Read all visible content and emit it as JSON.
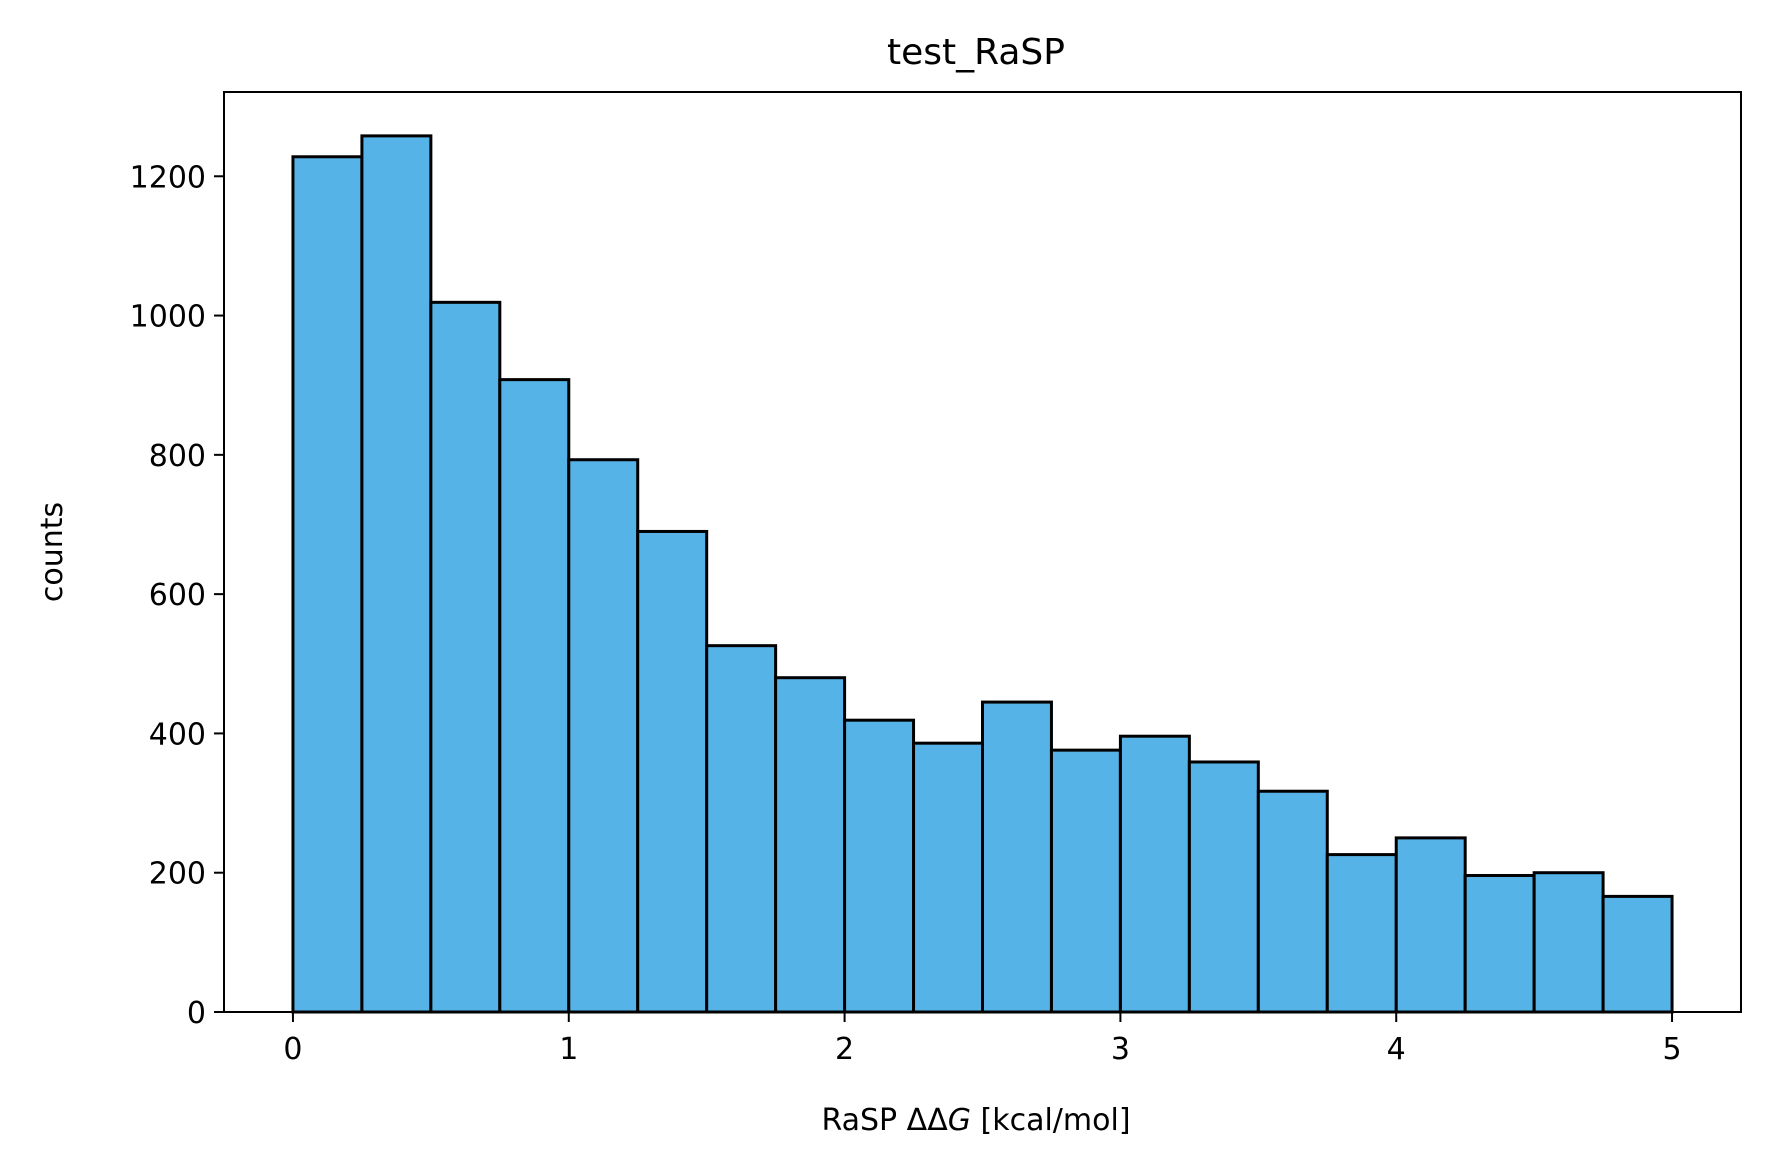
{
  "chart_data": {
    "type": "bar",
    "title": "test_RaSP",
    "xlabel_prefix": "RaSP ΔΔ",
    "xlabel_italic": "G",
    "xlabel_suffix": " [kcal/mol]",
    "ylabel": "counts",
    "bin_edges": [
      0,
      0.25,
      0.5,
      0.75,
      1.0,
      1.25,
      1.5,
      1.75,
      2.0,
      2.25,
      2.5,
      2.75,
      3.0,
      3.25,
      3.5,
      3.75,
      4.0,
      4.25,
      4.5,
      4.75,
      5.0
    ],
    "values": [
      1228,
      1258,
      1019,
      908,
      793,
      690,
      526,
      480,
      419,
      386,
      445,
      376,
      396,
      359,
      317,
      226,
      250,
      196,
      200,
      166
    ],
    "xlim": [
      -0.25,
      5.25
    ],
    "ylim": [
      0,
      1321
    ],
    "xticks": [
      0,
      1,
      2,
      3,
      4,
      5
    ],
    "xtick_labels": [
      "0",
      "1",
      "2",
      "3",
      "4",
      "5"
    ],
    "yticks": [
      0,
      200,
      400,
      600,
      800,
      1000,
      1200
    ],
    "ytick_labels": [
      "0",
      "200",
      "400",
      "600",
      "800",
      "1000",
      "1200"
    ],
    "grid": false,
    "legend": "none",
    "bar_color": "#56b3e7",
    "edge_color": "#000000"
  }
}
